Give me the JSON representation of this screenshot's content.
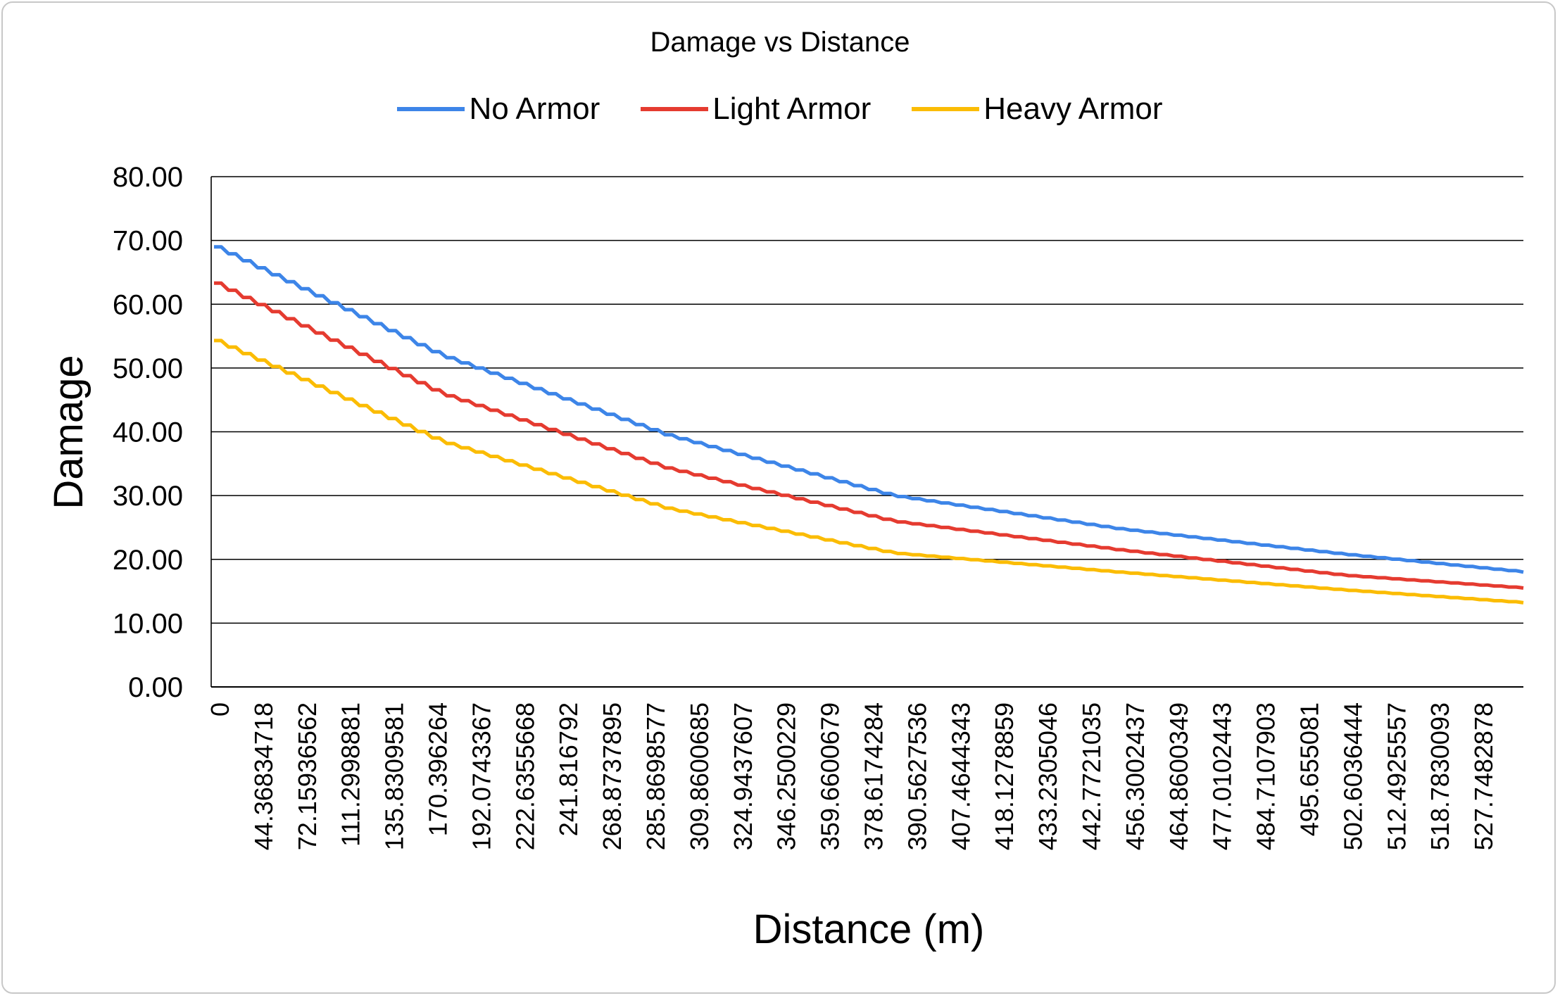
{
  "chart_data": {
    "type": "line",
    "title": "Damage vs Distance",
    "xlabel": "Distance (m)",
    "ylabel": "Damage",
    "ylim": [
      0,
      80
    ],
    "y_ticks": [
      "0.00",
      "10.00",
      "20.00",
      "30.00",
      "40.00",
      "50.00",
      "60.00",
      "70.00",
      "80.00"
    ],
    "x_tick_labels": [
      "0",
      "44.36834718",
      "72.15936562",
      "111.2998881",
      "135.8309581",
      "170.396264",
      "192.0743367",
      "222.6355668",
      "241.816792",
      "268.8737895",
      "285.8698577",
      "309.8600685",
      "324.9437607",
      "346.2500229",
      "359.6600679",
      "378.6174284",
      "390.5627536",
      "407.4644343",
      "418.1278859",
      "433.2305046",
      "442.7721035",
      "456.3002437",
      "464.8600349",
      "477.0102443",
      "484.7107903",
      "495.655081",
      "502.6036444",
      "512.4925557",
      "518.7830093",
      "527.7482878"
    ],
    "grid": true,
    "legend_position": "top",
    "series": [
      {
        "name": "No Armor",
        "color": "#3d85e8",
        "start": 69.0,
        "end": 18.0,
        "shape": "convex"
      },
      {
        "name": "Light Armor",
        "color": "#e53b30",
        "start": 63.3,
        "end": 15.5,
        "shape": "convex"
      },
      {
        "name": "Heavy Armor",
        "color": "#fbbc04",
        "start": 54.3,
        "end": 13.2,
        "shape": "convex"
      }
    ],
    "sample_values": {
      "x_index": [
        0,
        5,
        10,
        15,
        20,
        25,
        29
      ],
      "No Armor": [
        69.0,
        52.0,
        39.5,
        30.0,
        24.8,
        20.8,
        18.0
      ],
      "Light Armor": [
        63.3,
        46.0,
        34.3,
        26.0,
        21.5,
        17.5,
        15.5
      ],
      "Heavy Armor": [
        54.3,
        38.5,
        28.0,
        21.0,
        18.0,
        15.2,
        13.2
      ]
    }
  }
}
